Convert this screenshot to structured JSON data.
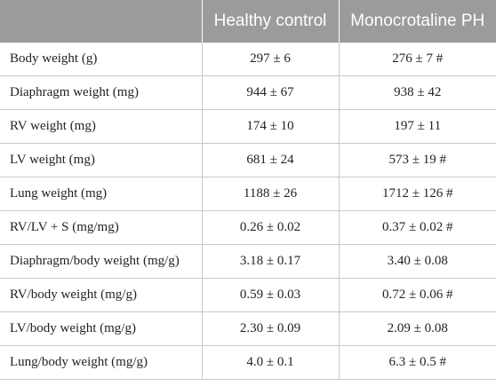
{
  "table": {
    "headers": [
      "",
      "Healthy control",
      "Monocrotaline PH"
    ],
    "rows": [
      [
        "Body weight (g)",
        "297 ± 6",
        "276 ± 7 #"
      ],
      [
        "Diaphragm weight (mg)",
        "944 ± 67",
        "938 ± 42"
      ],
      [
        "RV weight (mg)",
        "174 ± 10",
        "197 ± 11"
      ],
      [
        "LV weight (mg)",
        "681 ± 24",
        "573 ± 19 #"
      ],
      [
        "Lung weight (mg)",
        "1188 ± 26",
        "1712 ± 126 #"
      ],
      [
        "RV/LV + S (mg/mg)",
        "0.26 ± 0.02",
        "0.37 ± 0.02 #"
      ],
      [
        "Diaphragm/body weight (mg/g)",
        "3.18 ± 0.17",
        "3.40 ± 0.08"
      ],
      [
        "RV/body weight (mg/g)",
        "0.59 ± 0.03",
        "0.72 ± 0.06 #"
      ],
      [
        "LV/body weight (mg/g)",
        "2.30 ± 0.09",
        "2.09 ± 0.08"
      ],
      [
        "Lung/body weight (mg/g)",
        "4.0 ± 0.1",
        "6.3 ± 0.5 #"
      ]
    ]
  },
  "colors": {
    "header_background": "#9b9b9b",
    "header_text": "#ffffff",
    "grid_lines": "#c8c8c8"
  }
}
